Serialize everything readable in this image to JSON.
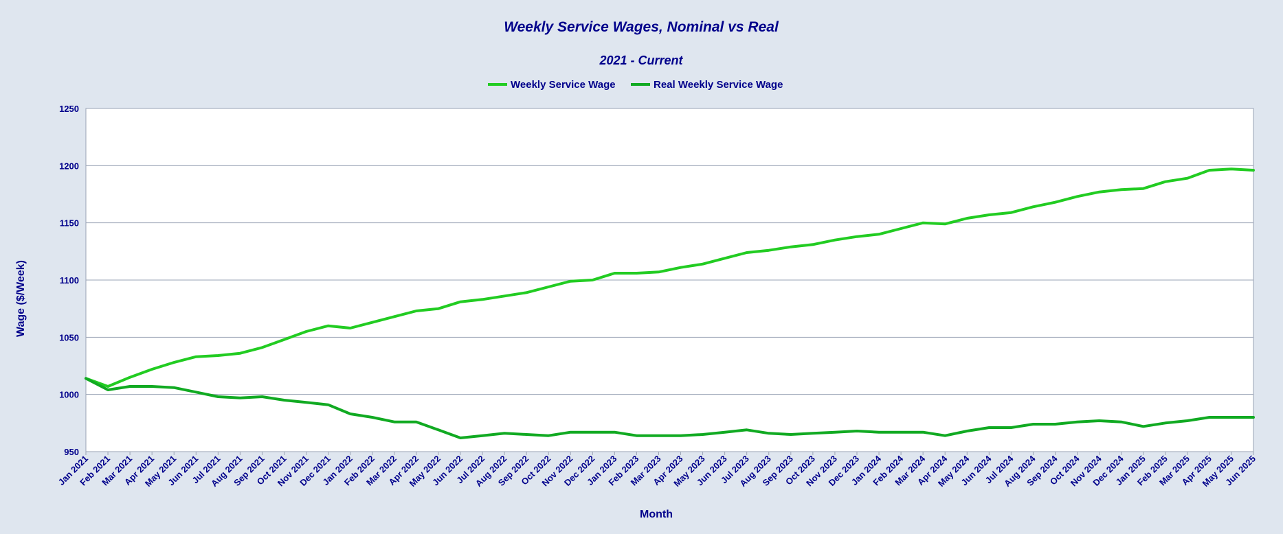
{
  "chart_data": {
    "type": "line",
    "title": "Weekly Service Wages, Nominal vs Real",
    "subtitle": "2021 - Current",
    "xlabel": "Month",
    "ylabel": "Wage ($/Week)",
    "ylim": [
      950,
      1250
    ],
    "yticks": [
      "950",
      "1000",
      "1050",
      "1100",
      "1150",
      "1200",
      "1250"
    ],
    "grid": true,
    "legend_position": "top-center",
    "categories": [
      "Jan 2021",
      "Feb 2021",
      "Mar 2021",
      "Apr 2021",
      "May 2021",
      "Jun 2021",
      "Jul 2021",
      "Aug 2021",
      "Sep 2021",
      "Oct 2021",
      "Nov 2021",
      "Dec 2021",
      "Jan 2022",
      "Feb 2022",
      "Mar 2022",
      "Apr 2022",
      "May 2022",
      "Jun 2022",
      "Jul 2022",
      "Aug 2022",
      "Sep 2022",
      "Oct 2022",
      "Nov 2022",
      "Dec 2022",
      "Jan 2023",
      "Feb 2023",
      "Mar 2023",
      "Apr 2023",
      "May 2023",
      "Jun 2023",
      "Jul 2023",
      "Aug 2023",
      "Sep 2023",
      "Oct 2023",
      "Nov 2023",
      "Dec 2023",
      "Jan 2024",
      "Feb 2024",
      "Mar 2024",
      "Apr 2024",
      "May 2024",
      "Jun 2024",
      "Jul 2024",
      "Aug 2024",
      "Sep 2024",
      "Oct 2024",
      "Nov 2024",
      "Dec 2024",
      "Jan 2025",
      "Feb 2025",
      "Mar 2025",
      "Apr 2025",
      "May 2025",
      "Jun 2025"
    ],
    "series": [
      {
        "name": "Weekly Service Wage",
        "color": "#22cc22",
        "values": [
          1014,
          1007,
          1015,
          1022,
          1028,
          1033,
          1034,
          1036,
          1041,
          1048,
          1055,
          1060,
          1058,
          1063,
          1068,
          1073,
          1075,
          1081,
          1083,
          1086,
          1089,
          1094,
          1099,
          1100,
          1106,
          1106,
          1107,
          1111,
          1114,
          1119,
          1124,
          1126,
          1129,
          1131,
          1135,
          1138,
          1140,
          1145,
          1150,
          1149,
          1154,
          1157,
          1159,
          1164,
          1168,
          1173,
          1177,
          1179,
          1180,
          1186,
          1189,
          1196,
          1197,
          1196
        ]
      },
      {
        "name": "Real Weekly Service  Wage",
        "color": "#11aa22",
        "values": [
          1014,
          1004,
          1007,
          1007,
          1006,
          1002,
          998,
          997,
          998,
          995,
          993,
          991,
          983,
          980,
          976,
          976,
          969,
          962,
          964,
          966,
          965,
          964,
          967,
          967,
          967,
          964,
          964,
          964,
          965,
          967,
          969,
          966,
          965,
          966,
          967,
          968,
          967,
          967,
          967,
          964,
          968,
          971,
          971,
          974,
          974,
          976,
          977,
          976,
          972,
          975,
          977,
          980,
          980,
          980
        ]
      }
    ]
  }
}
